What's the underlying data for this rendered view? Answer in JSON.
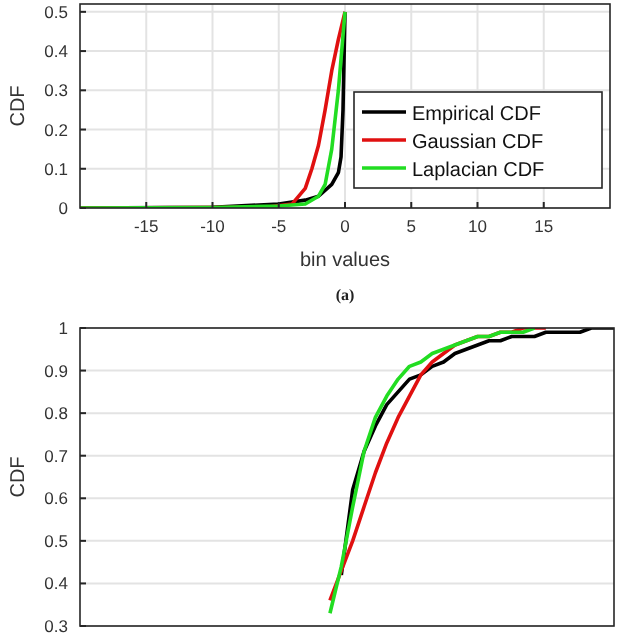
{
  "chart_data": [
    {
      "type": "line",
      "ylabel": "CDF",
      "xlabel": "bin values",
      "annotations": [
        "(a)"
      ],
      "xlim": [
        -20,
        20
      ],
      "ylim": [
        0,
        0.52
      ],
      "xticks": [
        -15,
        -10,
        -5,
        0,
        5,
        10,
        15
      ],
      "yticks": [
        0,
        0.1,
        0.2,
        0.3,
        0.4,
        0.5
      ],
      "grid": true,
      "legend": "bottom right",
      "line_style": "solid",
      "series": [
        {
          "name": "Empirical CDF",
          "color": "#000000",
          "x": [
            -20,
            -10,
            -5,
            -3,
            -2,
            -1,
            -0.5,
            -0.3,
            -0.15,
            0
          ],
          "values": [
            0,
            0.002,
            0.01,
            0.02,
            0.03,
            0.06,
            0.09,
            0.13,
            0.25,
            0.5
          ]
        },
        {
          "name": "Gaussian CDF",
          "color": "#e01010",
          "x": [
            -20,
            -6,
            -4,
            -3,
            -2.5,
            -2,
            -1.5,
            -1,
            -0.5,
            0
          ],
          "values": [
            0,
            0.002,
            0.01,
            0.05,
            0.1,
            0.16,
            0.25,
            0.35,
            0.43,
            0.5
          ]
        },
        {
          "name": "Laplacian CDF",
          "color": "#22dd22",
          "x": [
            -20,
            -10,
            -5,
            -3,
            -2,
            -1.5,
            -1,
            -0.5,
            0
          ],
          "values": [
            0,
            0.001,
            0.005,
            0.01,
            0.03,
            0.06,
            0.15,
            0.3,
            0.5
          ]
        }
      ]
    },
    {
      "type": "line",
      "ylabel": "CDF",
      "categories": [
        null,
        null,
        null,
        null,
        null,
        null,
        null,
        null,
        null,
        null,
        null,
        null,
        null,
        null,
        null,
        null,
        null,
        null,
        null,
        null,
        null,
        null,
        null,
        null,
        null,
        null,
        null,
        null,
        null,
        null,
        null,
        null,
        null,
        null,
        null,
        null,
        null,
        null,
        null,
        null,
        null,
        null,
        null,
        null,
        null,
        null,
        null,
        null
      ],
      "ylim": [
        0.3,
        1
      ],
      "yticks": [
        0.3,
        0.4,
        0.5,
        0.6,
        0.7,
        0.8,
        0.9,
        1
      ],
      "grid": "y",
      "line_style": "solid",
      "series": [
        {
          "color": "#000000",
          "values": [
            null,
            null,
            null,
            null,
            null,
            null,
            null,
            null,
            null,
            null,
            null,
            null,
            null,
            null,
            null,
            null,
            null,
            null,
            null,
            null,
            null,
            null,
            null,
            0.42,
            0.62,
            0.71,
            0.77,
            0.82,
            0.85,
            0.88,
            0.89,
            0.91,
            0.92,
            0.94,
            0.95,
            0.96,
            0.97,
            0.97,
            0.98,
            0.98,
            0.98,
            0.99,
            0.99,
            0.99,
            0.99,
            1,
            1,
            1
          ]
        },
        {
          "color": "#e01010",
          "values": [
            null,
            null,
            null,
            null,
            null,
            null,
            null,
            null,
            null,
            null,
            null,
            null,
            null,
            null,
            null,
            null,
            null,
            null,
            null,
            null,
            null,
            null,
            0.36,
            0.43,
            0.5,
            0.58,
            0.66,
            0.73,
            0.79,
            0.84,
            0.89,
            0.92,
            0.94,
            0.96,
            0.97,
            0.98,
            0.98,
            0.99,
            0.99,
            1,
            1,
            1,
            null,
            null,
            null,
            null,
            null,
            null
          ]
        },
        {
          "color": "#22dd22",
          "values": [
            null,
            null,
            null,
            null,
            null,
            null,
            null,
            null,
            null,
            null,
            null,
            null,
            null,
            null,
            null,
            null,
            null,
            null,
            null,
            null,
            null,
            null,
            0.33,
            0.44,
            0.58,
            0.71,
            0.79,
            0.84,
            0.88,
            0.91,
            0.92,
            0.94,
            0.95,
            0.96,
            0.97,
            0.98,
            0.98,
            0.99,
            0.99,
            0.99,
            1,
            null,
            null,
            null,
            null,
            null,
            null,
            null
          ]
        }
      ]
    }
  ]
}
